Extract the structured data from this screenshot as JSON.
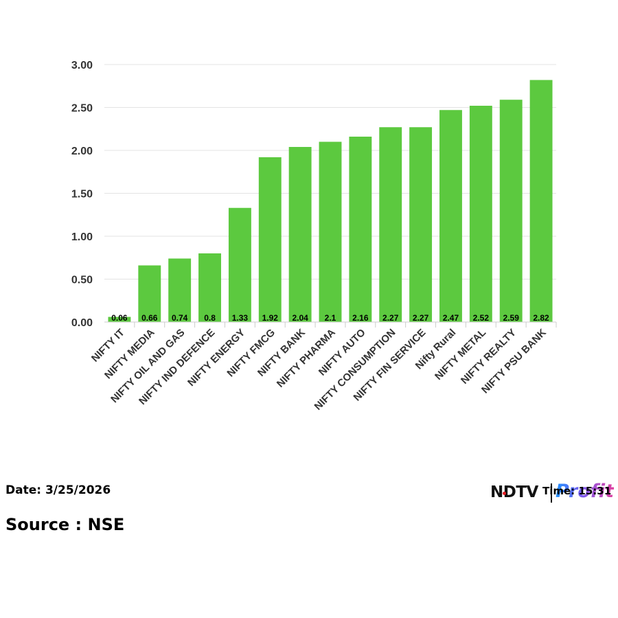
{
  "chart_data": {
    "type": "bar",
    "categories": [
      "NIFTY IT",
      "NIFTY MEDIA",
      "NIFTY OIL AND GAS",
      "NIFTY IND DEFENCE",
      "NIFTY ENERGY",
      "NIFTY FMCG",
      "NIFTY BANK",
      "NIFTY PHARMA",
      "NIFTY AUTO",
      "NIFTY CONSUMPTION",
      "NIFTY FIN SERVICE",
      "Nifty Rural",
      "NIFTY METAL",
      "NIFTY REALTY",
      "NIFTY PSU BANK"
    ],
    "values": [
      0.06,
      0.66,
      0.74,
      0.8,
      1.33,
      1.92,
      2.04,
      2.1,
      2.16,
      2.27,
      2.27,
      2.47,
      2.52,
      2.59,
      2.82
    ],
    "data_labels": [
      "0.06",
      "0.66",
      "0.74",
      "0.8",
      "1.33",
      "1.92",
      "2.04",
      "2.1",
      "2.16",
      "2.27",
      "2.27",
      "2.47",
      "2.52",
      "2.59",
      "2.82"
    ],
    "yticks": [
      "0.00",
      "0.50",
      "1.00",
      "1.50",
      "2.00",
      "2.50",
      "3.00"
    ],
    "ylim": [
      0,
      3
    ],
    "grid": true,
    "legend": "none",
    "bar_color": "#5cc93f",
    "grid_color": "#e3e3e3",
    "tick_color": "#333333"
  },
  "footer": {
    "date": "Date: 3/25/2026",
    "source": "Source : NSE",
    "time": "Time: 15:31"
  },
  "brand": {
    "ndtv": "NDTV",
    "profit": "Profit"
  }
}
